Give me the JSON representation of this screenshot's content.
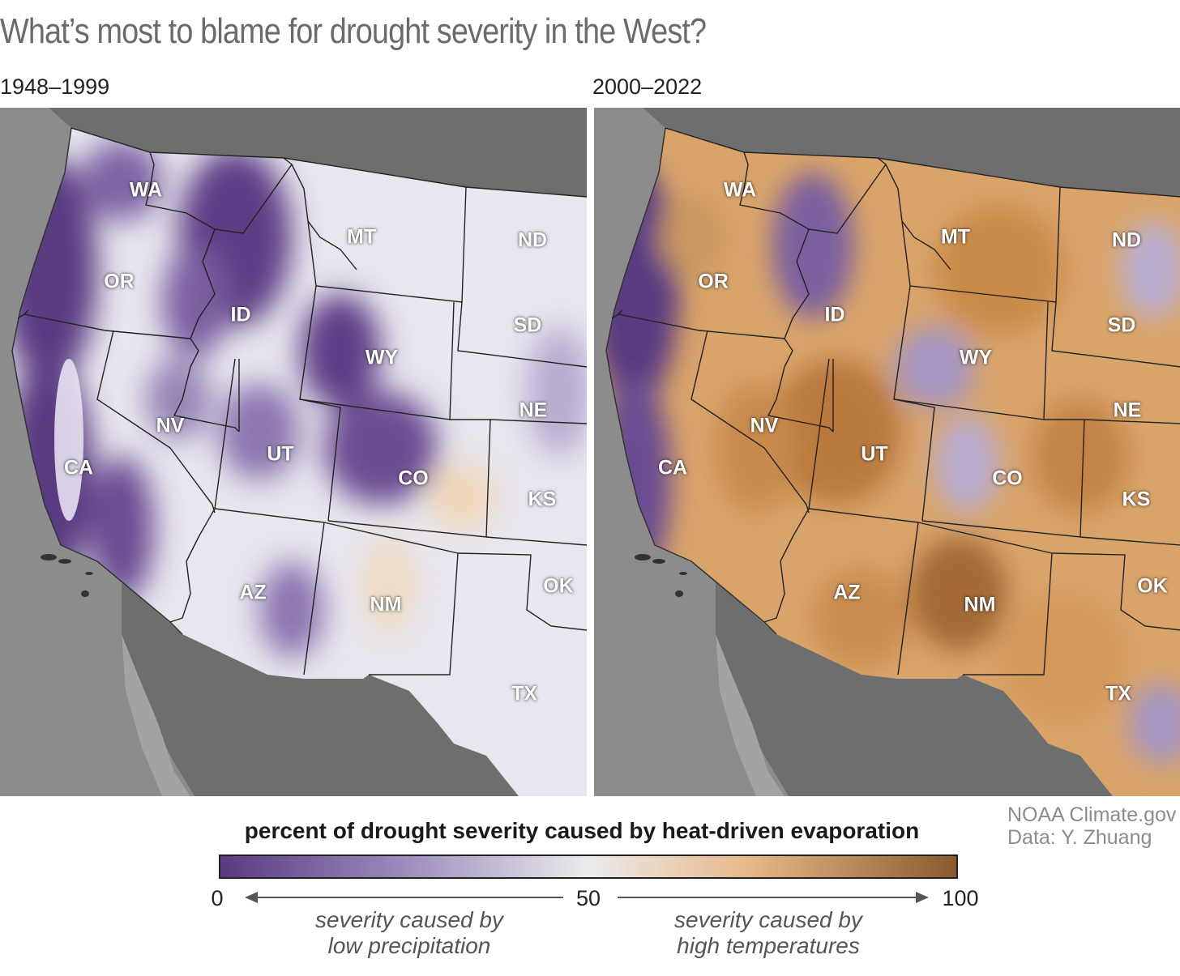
{
  "title": "What’s most to blame for drought severity in the West?",
  "panels": [
    {
      "period": "1948–1999",
      "states": [
        "WA",
        "OR",
        "CA",
        "ID",
        "NV",
        "MT",
        "WY",
        "UT",
        "AZ",
        "CO",
        "NM",
        "ND",
        "SD",
        "NE",
        "KS",
        "OK",
        "TX"
      ]
    },
    {
      "period": "2000–2022",
      "states": [
        "WA",
        "OR",
        "CA",
        "ID",
        "NV",
        "MT",
        "WY",
        "UT",
        "AZ",
        "CO",
        "NM",
        "ND",
        "SD",
        "NE",
        "KS",
        "OK",
        "TX"
      ]
    }
  ],
  "legend": {
    "title": "percent of drought severity caused by heat-driven evaporation",
    "min": "0",
    "mid": "50",
    "max": "100",
    "left_note_line1": "severity caused by",
    "left_note_line2": "low precipitation",
    "right_note_line1": "severity caused by",
    "right_note_line2": "high temperatures",
    "colors": {
      "low": "#5a3a82",
      "mid": "#ecebec",
      "high": "#8a5a2e"
    }
  },
  "credit": {
    "line1": "NOAA Climate.gov",
    "line2": "Data: Y. Zhuang"
  }
}
